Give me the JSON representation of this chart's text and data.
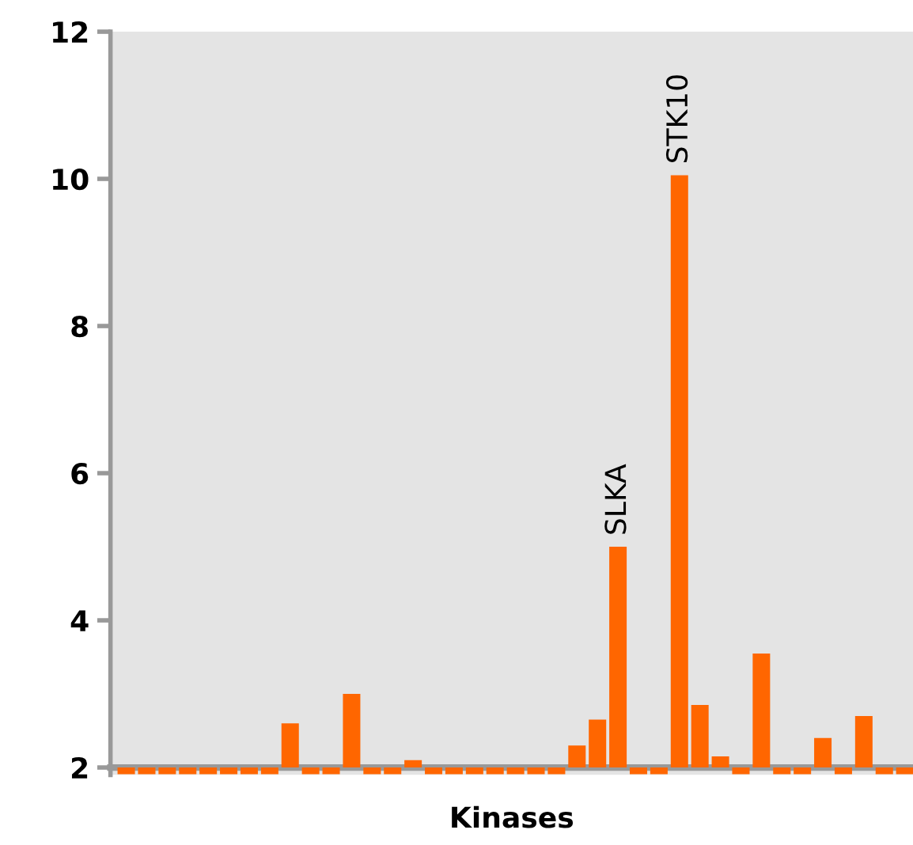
{
  "chart_data": {
    "type": "bar",
    "xlabel": "Kinases",
    "categories": [
      null,
      null,
      null,
      null,
      null,
      null,
      null,
      null,
      null,
      null,
      null,
      null,
      null,
      null,
      null,
      null,
      null,
      null,
      null,
      null,
      null,
      null,
      null,
      null,
      null,
      null,
      null,
      null,
      null,
      null,
      null,
      null,
      null,
      null,
      null,
      null,
      null,
      null,
      null
    ],
    "base": [
      2,
      2,
      2,
      2,
      2,
      2,
      2,
      2,
      2,
      2,
      2,
      2,
      2,
      2,
      2,
      2,
      2,
      2,
      2,
      2,
      2,
      2,
      2,
      2,
      2,
      2,
      2,
      2,
      2,
      2,
      2,
      2,
      2,
      2,
      2,
      2,
      2,
      2,
      2
    ],
    "values": [
      -0.09,
      -0.09,
      -0.09,
      -0.09,
      -0.09,
      -0.09,
      -0.09,
      -0.09,
      0.6,
      -0.09,
      -0.09,
      1.0,
      -0.09,
      -0.09,
      0.1,
      -0.09,
      -0.09,
      -0.09,
      -0.09,
      -0.09,
      -0.09,
      -0.09,
      0.3,
      0.65,
      3.0,
      -0.09,
      -0.09,
      8.05,
      0.85,
      0.15,
      -0.09,
      1.55,
      -0.09,
      -0.09,
      0.4,
      -0.09,
      0.7,
      -0.09,
      -0.09
    ],
    "value_labels": [
      null,
      null,
      null,
      null,
      null,
      null,
      null,
      null,
      null,
      null,
      null,
      null,
      null,
      null,
      null,
      null,
      null,
      null,
      null,
      null,
      null,
      null,
      null,
      null,
      "SLKA",
      null,
      null,
      "STK10",
      null,
      null,
      null,
      null,
      null,
      null,
      null,
      null,
      null,
      null,
      null
    ],
    "color": "#ff6600",
    "ylim": [
      1.9,
      12
    ],
    "yticks": [
      2,
      4,
      6,
      8,
      10,
      12
    ],
    "legend": false
  }
}
